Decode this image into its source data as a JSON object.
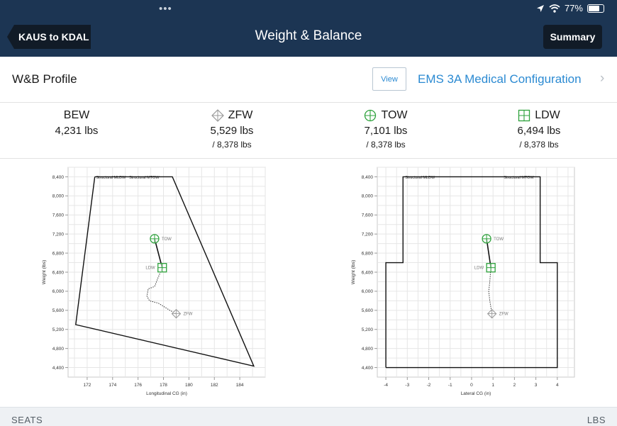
{
  "status_bar": {
    "battery_percent": "77%",
    "battery_level": 0.77,
    "icons": [
      "location-arrow-icon",
      "wifi-icon",
      "battery-icon"
    ]
  },
  "nav": {
    "back_label": "KAUS to KDAL",
    "title": "Weight & Balance",
    "summary_label": "Summary"
  },
  "profile": {
    "label": "W&B Profile",
    "view_label": "View",
    "config_name": "EMS 3A Medical Configuration"
  },
  "weights": [
    {
      "label": "BEW",
      "value": "4,231 lbs",
      "max": "",
      "icon": "none"
    },
    {
      "label": "ZFW",
      "value": "5,529 lbs",
      "max": "/ 8,378 lbs",
      "icon": "diamond-icon"
    },
    {
      "label": "TOW",
      "value": "7,101 lbs",
      "max": "/ 8,378 lbs",
      "icon": "circle-cross-icon"
    },
    {
      "label": "LDW",
      "value": "6,494 lbs",
      "max": "/ 8,378 lbs",
      "icon": "square-cross-icon"
    }
  ],
  "colors": {
    "nav_bg": "#1c3553",
    "button_bg": "#111b27",
    "accent": "#2b8ad2",
    "marker_green": "#2ea23c",
    "marker_gray": "#9a9a9a"
  },
  "chart_data": [
    {
      "type": "scatter",
      "xlabel": "Longitudinal CG (in)",
      "ylabel": "Weight (lbs)",
      "xlim": [
        170.5,
        186
      ],
      "ylim": [
        4200,
        8600
      ],
      "xticks": [
        172,
        174,
        176,
        178,
        180,
        182,
        184
      ],
      "yticks": [
        4400,
        4800,
        5200,
        5600,
        6000,
        6400,
        6800,
        7200,
        7600,
        8000,
        8400
      ],
      "grid": true,
      "envelope": [
        [
          172.6,
          8400
        ],
        [
          178.7,
          8400
        ],
        [
          185.1,
          4430
        ],
        [
          171.1,
          5300
        ],
        [
          172.6,
          8400
        ]
      ],
      "limit_labels": [
        {
          "text": "Structural MLDW",
          "x": 172.7,
          "y": 8400
        },
        {
          "text": "Structural MTOW",
          "x": 175.3,
          "y": 8400
        }
      ],
      "points": [
        {
          "name": "TOW",
          "x": 177.3,
          "y": 7101,
          "marker": "circle-cross"
        },
        {
          "name": "LDW",
          "x": 177.9,
          "y": 6494,
          "marker": "square-cross"
        },
        {
          "name": "ZFW",
          "x": 179.0,
          "y": 5529,
          "marker": "diamond"
        }
      ],
      "path": [
        [
          177.3,
          7101
        ],
        [
          177.9,
          6494
        ],
        [
          177.6,
          6300
        ],
        [
          177.3,
          6100
        ],
        [
          176.8,
          6050
        ],
        [
          176.7,
          5900
        ],
        [
          176.9,
          5800
        ],
        [
          177.6,
          5750
        ],
        [
          178.5,
          5600
        ],
        [
          179.0,
          5529
        ]
      ]
    },
    {
      "type": "scatter",
      "xlabel": "Lateral CG (in)",
      "ylabel": "Weight (lbs)",
      "xlim": [
        -4.4,
        4.8
      ],
      "ylim": [
        4200,
        8600
      ],
      "xticks": [
        -4,
        -3,
        -2,
        -1,
        0,
        1,
        2,
        3,
        4
      ],
      "yticks": [
        4400,
        4800,
        5200,
        5600,
        6000,
        6400,
        6800,
        7200,
        7600,
        8000,
        8400
      ],
      "grid": true,
      "envelope": [
        [
          -4,
          4400
        ],
        [
          -4,
          6600
        ],
        [
          -3.2,
          6600
        ],
        [
          -3.2,
          8400
        ],
        [
          3.2,
          8400
        ],
        [
          3.2,
          6600
        ],
        [
          4,
          6600
        ],
        [
          4,
          4400
        ],
        [
          -4,
          4400
        ]
      ],
      "limit_labels": [
        {
          "text": "Structural MLDW",
          "x": -3.1,
          "y": 8400
        },
        {
          "text": "Structural MTOW",
          "x": 1.5,
          "y": 8400
        }
      ],
      "points": [
        {
          "name": "TOW",
          "x": 0.7,
          "y": 7101,
          "marker": "circle-cross"
        },
        {
          "name": "LDW",
          "x": 0.9,
          "y": 6494,
          "marker": "square-cross"
        },
        {
          "name": "ZFW",
          "x": 0.95,
          "y": 5529,
          "marker": "diamond"
        }
      ],
      "path": [
        [
          0.7,
          7101
        ],
        [
          0.9,
          6494
        ],
        [
          0.85,
          6200
        ],
        [
          0.8,
          6000
        ],
        [
          0.85,
          5800
        ],
        [
          0.95,
          5529
        ]
      ]
    }
  ],
  "bottom": {
    "left": "SEATS",
    "right": "LBS"
  }
}
